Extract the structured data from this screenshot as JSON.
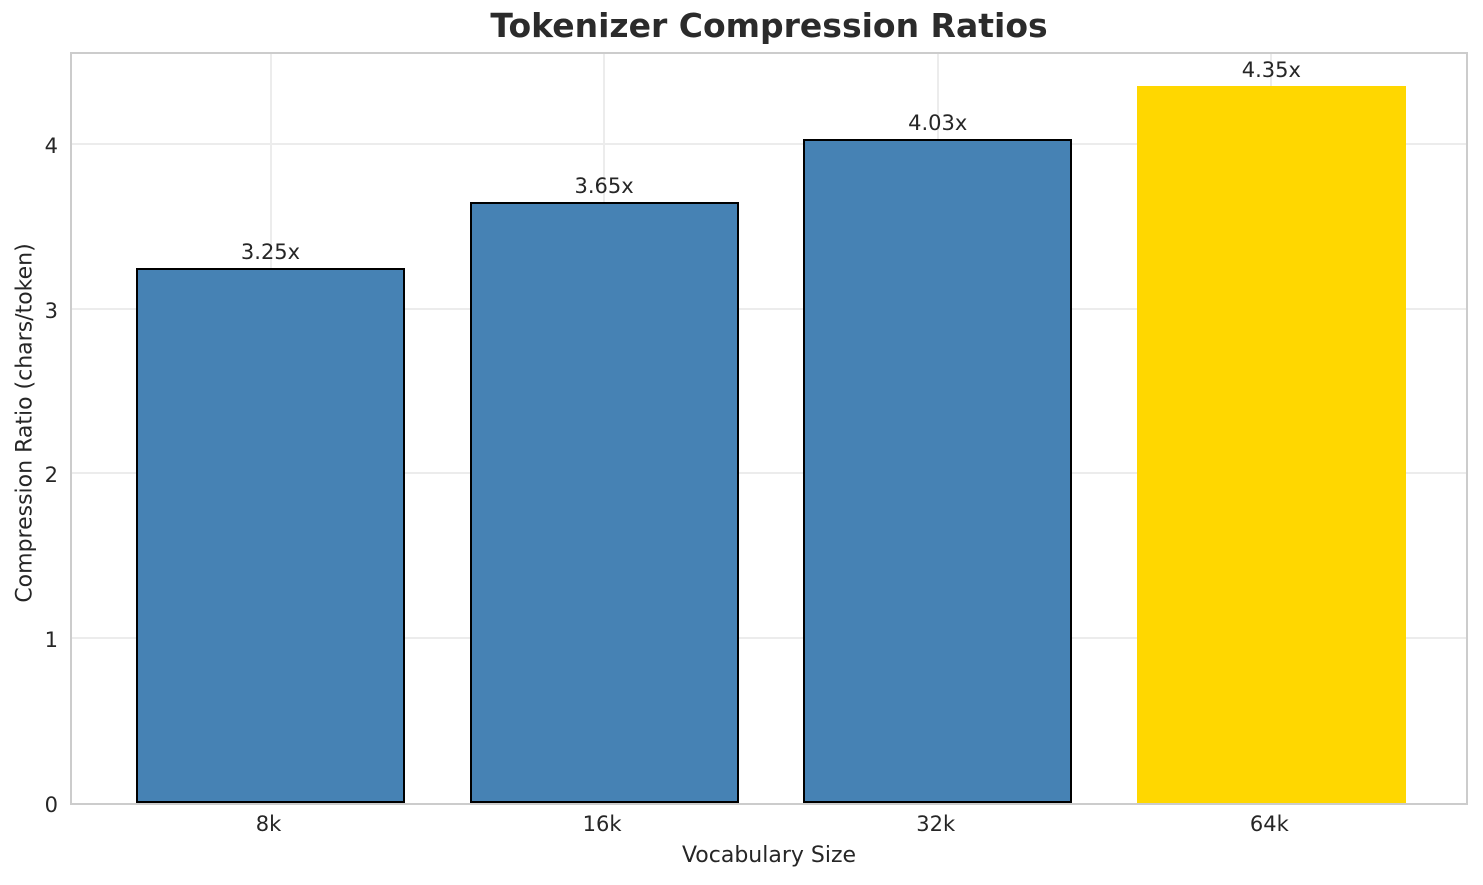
{
  "chart_data": {
    "type": "bar",
    "title": "Tokenizer Compression Ratios",
    "xlabel": "Vocabulary Size",
    "ylabel": "Compression Ratio (chars/token)",
    "categories": [
      "8k",
      "16k",
      "32k",
      "64k"
    ],
    "values": [
      3.25,
      3.65,
      4.03,
      4.35
    ],
    "bar_labels": [
      "3.25x",
      "3.65x",
      "4.03x",
      "4.35x"
    ],
    "yticks": [
      0,
      1,
      2,
      3,
      4
    ],
    "ytick_labels": [
      "0",
      "1",
      "2",
      "3",
      "4"
    ],
    "ylim": [
      0,
      4.57
    ],
    "grid": true,
    "legend_position": "none",
    "highlight_index": 3,
    "bar_colors": [
      "#4682B4",
      "#4682B4",
      "#4682B4",
      "#FFD700"
    ],
    "bar_edge_colors": [
      "#000000",
      "#000000",
      "#000000",
      "none"
    ],
    "colors": {
      "bar_default": "#4682B4",
      "bar_highlight": "#FFD700",
      "bar_edge": "#000000",
      "grid": "#ececec",
      "spine": "#cccccc",
      "text": "#262626",
      "background": "#ffffff"
    }
  }
}
